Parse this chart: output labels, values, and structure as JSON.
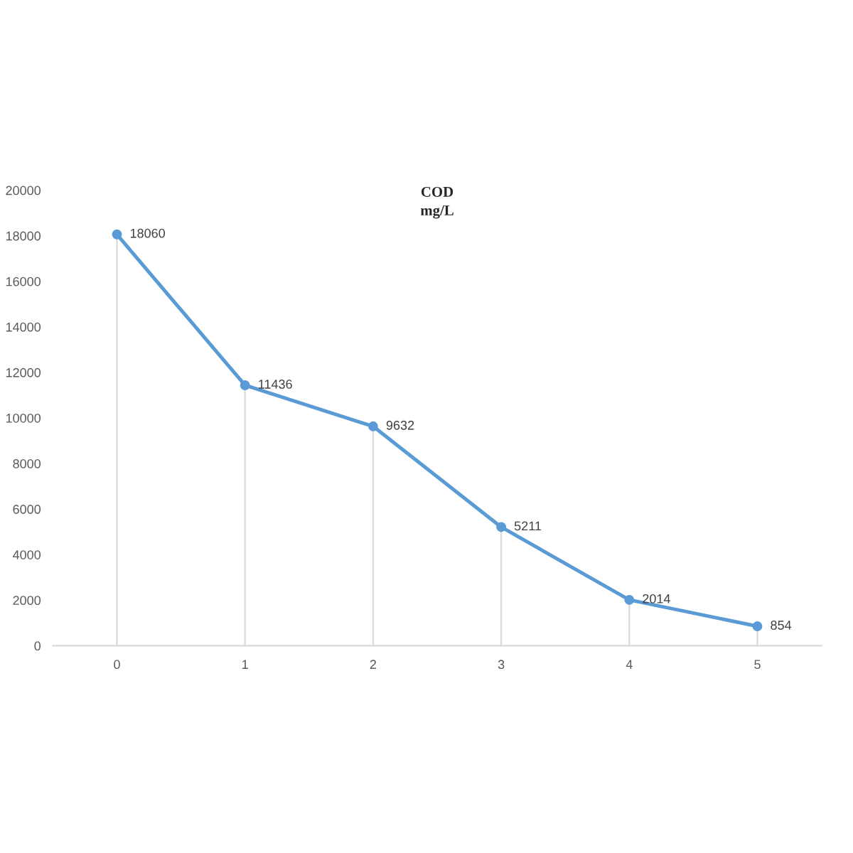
{
  "chart_data": {
    "type": "line",
    "title": "COD\nmg/L",
    "categories": [
      "0",
      "1",
      "2",
      "3",
      "4",
      "5"
    ],
    "series": [
      {
        "color": "#5b9bd5",
        "values": [
          18060,
          11436,
          9632,
          5211,
          2014,
          854
        ]
      }
    ],
    "ylim": [
      0,
      20000
    ],
    "yticks": [
      0,
      2000,
      4000,
      6000,
      8000,
      10000,
      12000,
      14000,
      16000,
      18000,
      20000
    ],
    "data_labels": true,
    "marker": "circle",
    "line_style": "solid"
  }
}
